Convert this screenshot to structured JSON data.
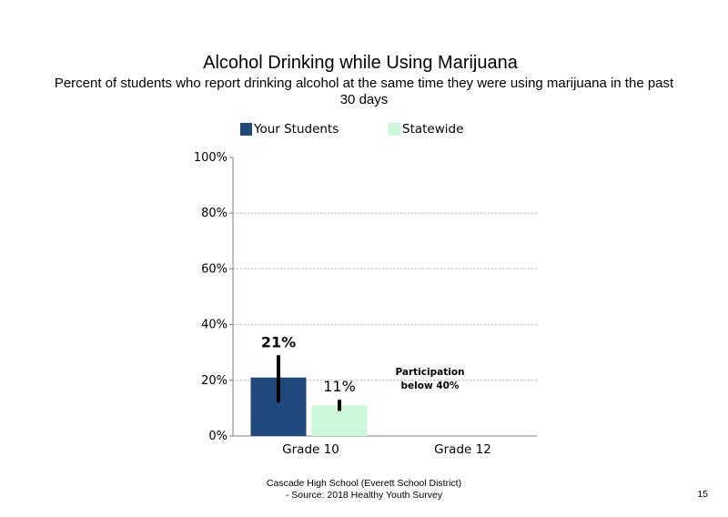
{
  "chart_data": {
    "type": "bar",
    "title": "Alcohol Drinking  while  Using Marijuana",
    "subtitle": "Percent of students who report drinking alcohol at the same time they were using marijuana in the past 30 days",
    "categories": [
      "Grade 10",
      "Grade 12"
    ],
    "series": [
      {
        "name": "Your Students",
        "color": "#1f497d",
        "values": [
          21,
          null
        ],
        "labels": [
          "21%",
          ""
        ],
        "error_low": [
          12,
          null
        ],
        "error_high": [
          29,
          null
        ]
      },
      {
        "name": "Statewide",
        "color": "#ccf7d9",
        "values": [
          11,
          null
        ],
        "labels": [
          "11%",
          ""
        ],
        "error_low": [
          9,
          null
        ],
        "error_high": [
          13,
          null
        ]
      }
    ],
    "yticks": [
      "0%",
      "20%",
      "40%",
      "60%",
      "80%",
      "100%"
    ],
    "ylim": [
      0,
      100
    ],
    "grid": true,
    "legend": "top",
    "annotation": {
      "category": "Grade 12",
      "line1": "Participation",
      "line2": "below 40%"
    }
  },
  "footer": {
    "line1": "Cascade High School (Everett School District)",
    "line2": "- Source: 2018 Healthy  Youth Survey"
  },
  "page_number": "15"
}
